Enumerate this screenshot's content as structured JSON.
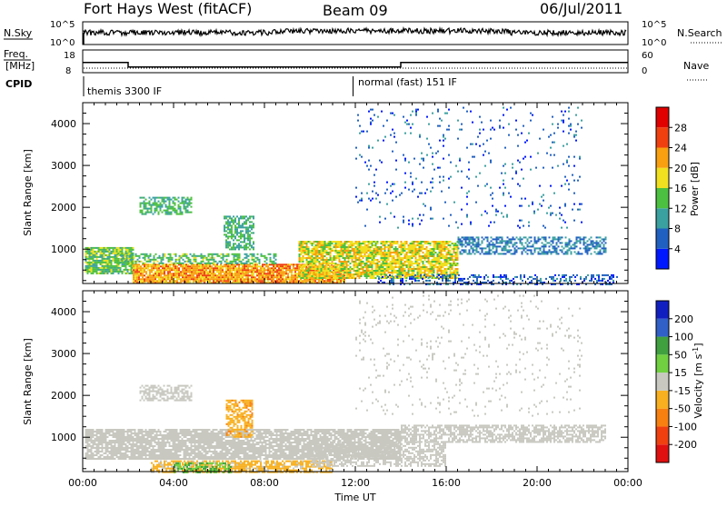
{
  "header": {
    "station": "Fort Hays West (fitACF)",
    "beam": "Beam 09",
    "date": "06/Jul/2011"
  },
  "top_strip": {
    "left_label_a": "N.Sky",
    "left_label_b": "Freq.",
    "left_label_c": "[MHz]",
    "left_label_d": "CPID",
    "right_label_a": "N.Search",
    "right_label_b": "Nave",
    "nsky_ticks": [
      "10^5",
      "10^0"
    ],
    "nsearch_ticks": [
      "10^5",
      "10^0"
    ],
    "freq_ticks": [
      "18",
      "8"
    ],
    "nave_ticks": [
      "60",
      "0"
    ],
    "cpid_first": "themis 3300 IF",
    "cpid_second": "normal (fast) 151 IF"
  },
  "axes": {
    "y_label": "Slant Range [km]",
    "x_label": "Time UT",
    "y_ticks": [
      "1000",
      "2000",
      "3000",
      "4000"
    ],
    "x_ticks": [
      "00:00",
      "04:00",
      "08:00",
      "12:00",
      "16:00",
      "20:00",
      "00:00"
    ]
  },
  "colorbars": {
    "power_label": "Power [dB]",
    "power_ticks": [
      "4",
      "8",
      "12",
      "16",
      "20",
      "24",
      "28"
    ],
    "velocity_label": "Velocity [m s",
    "velocity_label_sup": "-1",
    "velocity_label_close": "]",
    "velocity_ticks": [
      "200",
      "100",
      "50",
      "15",
      "-15",
      "-50",
      "-100",
      "-200"
    ]
  },
  "chart_data": {
    "type": "heatmap",
    "x_range_hours": [
      0,
      24
    ],
    "y_range_km": [
      180,
      4500
    ],
    "frequency": {
      "segments": [
        {
          "from": 0,
          "to": 2,
          "mhz": 12.5
        },
        {
          "from": 2,
          "to": 14,
          "mhz": 10.5
        },
        {
          "from": 14,
          "to": 24,
          "mhz": 12.5
        }
      ]
    },
    "nave_level": 12,
    "cpid_switch_hour": 11.9,
    "power_scale": {
      "min": 0,
      "max": 32,
      "colors": [
        "#0018ff",
        "#2060c0",
        "#3aa0a0",
        "#4cc040",
        "#f0e020",
        "#f8a010",
        "#f04010",
        "#e00000"
      ]
    },
    "velocity_scale": {
      "min": -250,
      "max": 250,
      "colors": [
        "#e01010",
        "#f04010",
        "#f88010",
        "#f8b020",
        "#c8c8c0",
        "#70d040",
        "#40a040",
        "#3060c8",
        "#1020c0"
      ]
    },
    "power_regions": [
      {
        "t0": 0.1,
        "t1": 2.2,
        "r0": 400,
        "r1": 1050,
        "level": 14,
        "density": 0.85
      },
      {
        "t0": 2.2,
        "t1": 11.5,
        "r0": 180,
        "r1": 650,
        "level": 22,
        "density": 0.9
      },
      {
        "t0": 1.5,
        "t1": 8.5,
        "r0": 650,
        "r1": 900,
        "level": 13,
        "density": 0.55
      },
      {
        "t0": 6.2,
        "t1": 7.5,
        "r0": 1000,
        "r1": 1800,
        "level": 12,
        "density": 0.6
      },
      {
        "t0": 2.5,
        "t1": 4.8,
        "r0": 1850,
        "r1": 2250,
        "level": 12,
        "density": 0.6
      },
      {
        "t0": 9.5,
        "t1": 16.5,
        "r0": 300,
        "r1": 1200,
        "level": 18,
        "density": 0.8
      },
      {
        "t0": 16.5,
        "t1": 23.0,
        "r0": 900,
        "r1": 1300,
        "level": 8,
        "density": 0.55
      },
      {
        "t0": 13.0,
        "t1": 23.5,
        "r0": 180,
        "r1": 400,
        "level": 6,
        "density": 0.35
      },
      {
        "t0": 12.0,
        "t1": 22.0,
        "r0": 1500,
        "r1": 4400,
        "level": 6,
        "density": 0.05
      }
    ],
    "velocity_regions": [
      {
        "t0": 0.1,
        "t1": 14.0,
        "r0": 500,
        "r1": 1200,
        "level": 0,
        "density": 0.85
      },
      {
        "t0": 14.0,
        "t1": 23.0,
        "r0": 900,
        "r1": 1300,
        "level": 0,
        "density": 0.65
      },
      {
        "t0": 3.0,
        "t1": 11.0,
        "r0": 180,
        "r1": 450,
        "level": -40,
        "density": 0.7
      },
      {
        "t0": 4.0,
        "t1": 6.5,
        "r0": 180,
        "r1": 400,
        "level": 80,
        "density": 0.55
      },
      {
        "t0": 6.3,
        "t1": 7.5,
        "r0": 1000,
        "r1": 1900,
        "level": -70,
        "density": 0.65
      },
      {
        "t0": 2.5,
        "t1": 4.8,
        "r0": 1900,
        "r1": 2250,
        "level": 0,
        "density": 0.6
      },
      {
        "t0": 10.0,
        "t1": 16.0,
        "r0": 300,
        "r1": 900,
        "level": 0,
        "density": 0.55
      },
      {
        "t0": 12.0,
        "t1": 22.0,
        "r0": 1500,
        "r1": 4400,
        "level": 0,
        "density": 0.05
      }
    ]
  }
}
